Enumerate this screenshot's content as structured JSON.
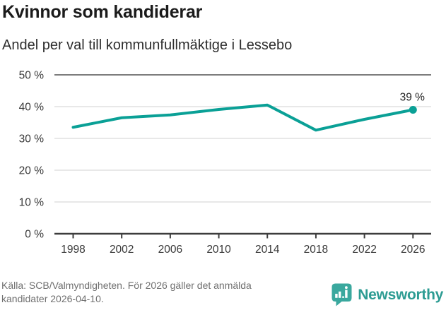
{
  "header": {
    "title": "Kvinnor som kandiderar",
    "subtitle": "Andel per val till kommunfullmäktige i Lessebo"
  },
  "chart_data": {
    "type": "line",
    "title": "Kvinnor som kandiderar",
    "subtitle": "Andel per val till kommunfullmäktige i Lessebo",
    "categories": [
      "1998",
      "2002",
      "2006",
      "2010",
      "2014",
      "2018",
      "2022",
      "2026"
    ],
    "values": [
      33.5,
      36.5,
      37.4,
      39.1,
      40.5,
      32.6,
      36.0,
      39.0
    ],
    "unit": "%",
    "ylim": [
      0,
      50
    ],
    "yticks": [
      0,
      10,
      20,
      30,
      40,
      50
    ],
    "ytick_suffix": " %",
    "grid": true,
    "legend": "none",
    "end_label": "39 %",
    "line_color": "#0aa096",
    "grid_color": "#e0e0e0",
    "top_grid_color": "#7d7d7d",
    "axis_color": "#3d3d3d",
    "tick_label_color": "#383838"
  },
  "footer": {
    "source_lines": [
      "Källa: SCB/Valmyndigheten. För 2026 gäller det anmälda",
      "kandidater 2026-04-10."
    ],
    "logo_text": "Newsworthy"
  },
  "colors": {
    "accent": "#0aa096",
    "logo_icon": "#3aa89e",
    "logo_text": "#2d9c93",
    "source_text": "#6f6f6f"
  }
}
